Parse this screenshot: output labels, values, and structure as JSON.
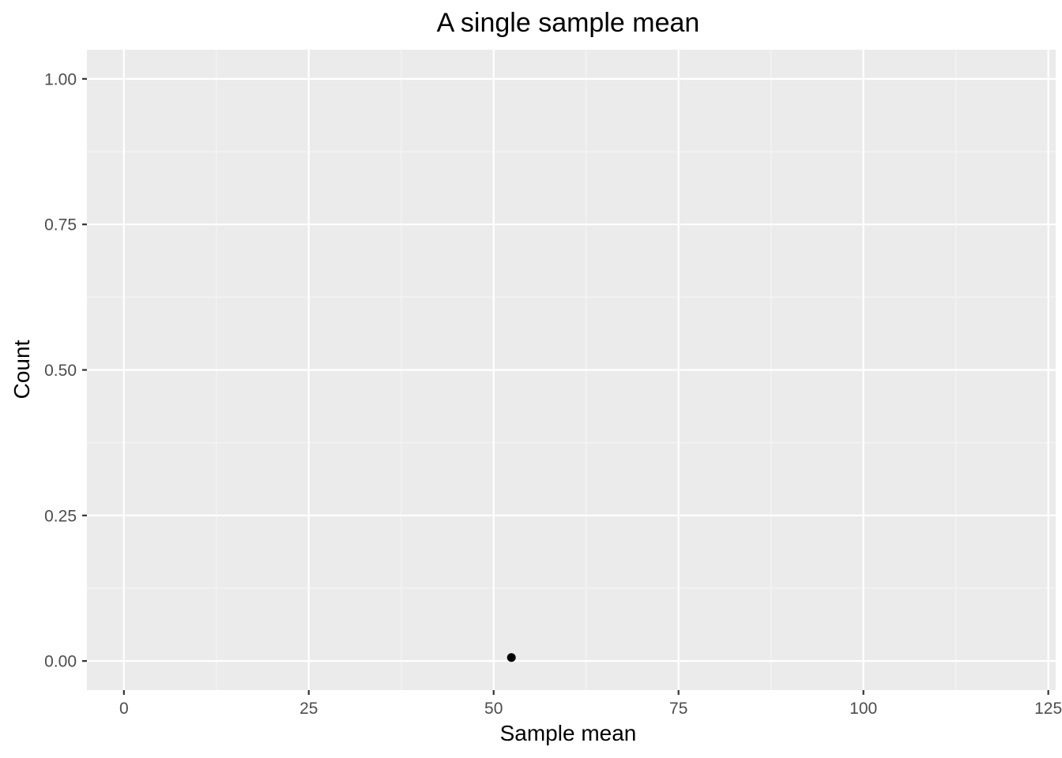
{
  "chart_data": {
    "type": "scatter",
    "title": "A single sample mean",
    "xlabel": "Sample mean",
    "ylabel": "Count",
    "xlim": [
      -5,
      126
    ],
    "ylim": [
      -0.05,
      1.05
    ],
    "x_ticks": [
      0,
      25,
      50,
      75,
      100,
      125
    ],
    "x_tick_labels": [
      "0",
      "25",
      "50",
      "75",
      "100",
      "125"
    ],
    "y_ticks": [
      0,
      0.25,
      0.5,
      0.75,
      1.0
    ],
    "y_tick_labels": [
      "0.00",
      "0.25",
      "0.50",
      "0.75",
      "1.00"
    ],
    "grid": true,
    "points": [
      {
        "x": 52.4,
        "y": 0.006
      }
    ],
    "colors": {
      "panel_background": "#EBEBEB",
      "grid_major": "#FFFFFF",
      "grid_minor": "#F5F5F5",
      "point": "#000000",
      "tick": "#333333"
    }
  }
}
